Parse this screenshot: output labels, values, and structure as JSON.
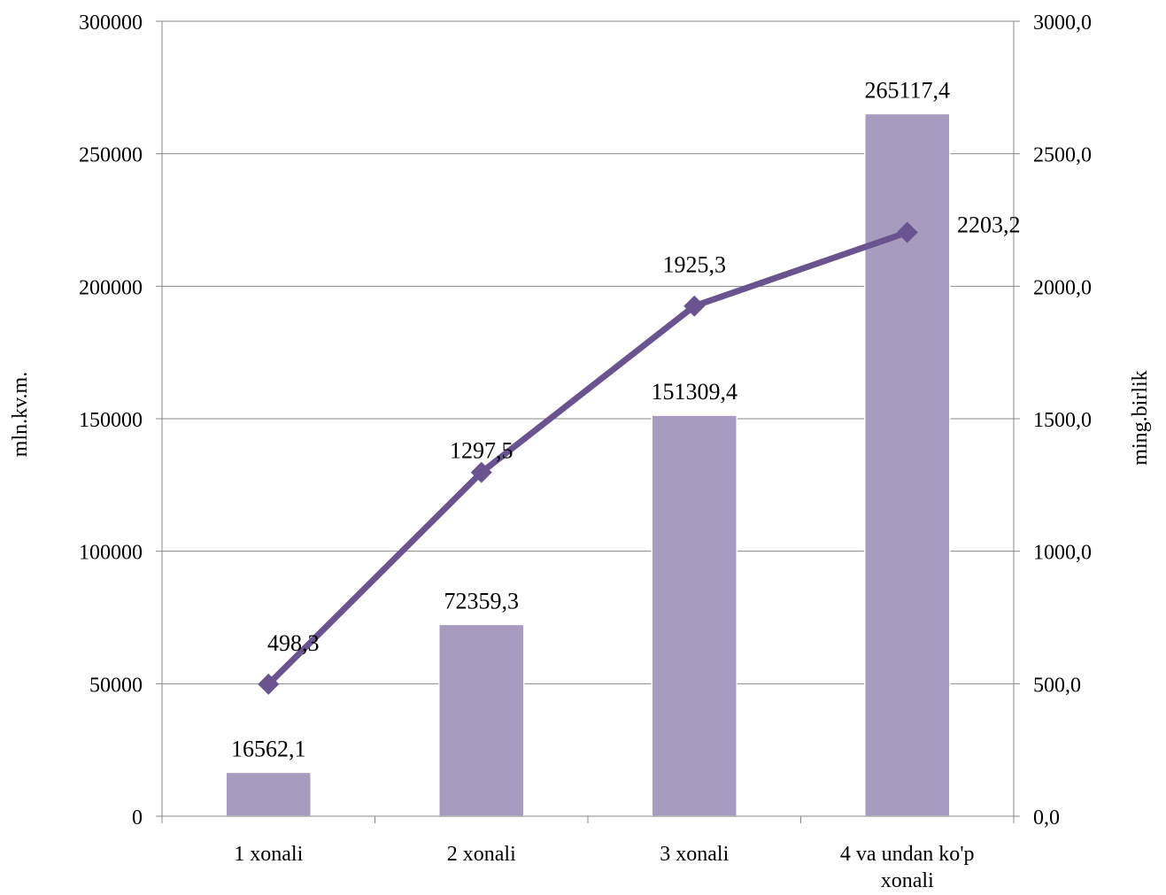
{
  "chart_data": {
    "type": "bar",
    "categories": [
      [
        "1 xonali"
      ],
      [
        "2 xonali"
      ],
      [
        "3 xonali"
      ],
      [
        "4 va undan ko'p",
        "xonali"
      ]
    ],
    "series": [
      {
        "type": "bar",
        "axis": "left",
        "values": [
          16562.1,
          72359.3,
          151309.4,
          265117.4
        ],
        "labels": [
          "16562,1",
          "72359,3",
          "151309,4",
          "265117,4"
        ]
      },
      {
        "type": "line",
        "axis": "right",
        "values": [
          498.3,
          1297.5,
          1925.3,
          2203.2
        ],
        "labels": [
          "498,3",
          "1297,5",
          "1925,3",
          "2203,2"
        ]
      }
    ],
    "ylabel_left": "mln.kv.m.",
    "ylabel_right": "ming.birlik",
    "ylim_left": [
      0,
      300000
    ],
    "ylim_right": [
      0,
      3000
    ],
    "yticks_left": [
      "0",
      "50000",
      "100000",
      "150000",
      "200000",
      "250000",
      "300000"
    ],
    "yticks_right": [
      "0,0",
      "500,0",
      "1000,0",
      "1500,0",
      "2000,0",
      "2500,0",
      "3000,0"
    ],
    "grid": true,
    "colors": {
      "bar": "#a79bc0",
      "bar_edge": "#ffffff",
      "line": "#6a5490",
      "grid": "#888888"
    }
  }
}
